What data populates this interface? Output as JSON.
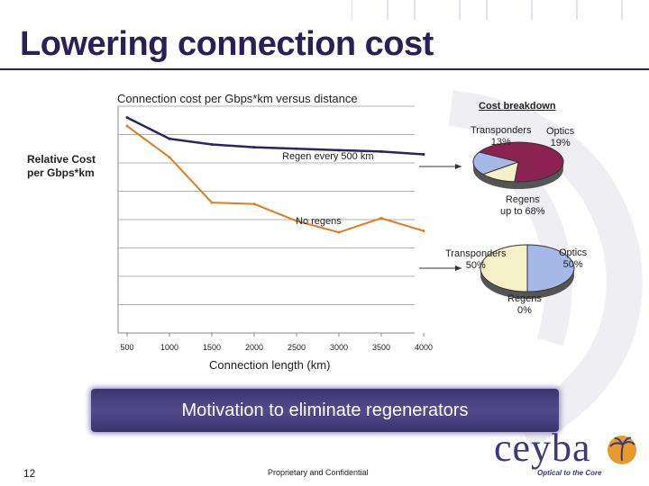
{
  "slide": {
    "title": "Lowering connection cost",
    "page_number": "12",
    "footer": "Proprietary and Confidential",
    "banner": "Motivation to eliminate regenerators",
    "logo_text": "ceyba",
    "logo_tagline": "Optical to the Core",
    "logo_icon": "palm-sun-icon"
  },
  "chart_data": [
    {
      "type": "line",
      "title": "Connection cost per Gbps*km versus distance",
      "xlabel": "Connection length (km)",
      "ylabel": "Relative Cost per Gbps*km",
      "x_ticks": [
        "500",
        "1000",
        "1500",
        "2000",
        "2500",
        "3000",
        "3500",
        "4000"
      ],
      "xlim": [
        500,
        4000
      ],
      "ylim": [
        0,
        8
      ],
      "grid": "horizontal",
      "series": [
        {
          "name": "Regen every 500 km",
          "color": "#2a2466",
          "x": [
            500,
            1000,
            1500,
            2000,
            2500,
            3000,
            3500,
            4000
          ],
          "y": [
            7.6,
            6.85,
            6.65,
            6.55,
            6.5,
            6.45,
            6.4,
            6.3
          ]
        },
        {
          "name": "No regens",
          "color": "#e07b1f",
          "x": [
            500,
            1000,
            1500,
            2000,
            2500,
            3000,
            3500,
            4000
          ],
          "y": [
            7.3,
            6.2,
            4.6,
            4.55,
            3.95,
            3.55,
            4.05,
            3.6
          ]
        }
      ],
      "annotations": [
        "Regen every 500 km",
        "No regens"
      ]
    },
    {
      "type": "pie",
      "title": "Cost breakdown",
      "case": "Regen every 500 km",
      "slices": [
        {
          "label": "Regens",
          "display": "Regens\nup to 68%",
          "value": 68,
          "color": "#8b2252"
        },
        {
          "label": "Transponders",
          "display": "Transponders\n13%",
          "value": 13,
          "color": "#f6f0c8"
        },
        {
          "label": "Optics",
          "display": "Optics\n19%",
          "value": 19,
          "color": "#a6b8e8"
        }
      ]
    },
    {
      "type": "pie",
      "title": "",
      "case": "No regens",
      "slices": [
        {
          "label": "Transponders",
          "display": "Transponders\n50%",
          "value": 50,
          "color": "#f6f0c8"
        },
        {
          "label": "Optics",
          "display": "Optics\n50%",
          "value": 50,
          "color": "#a6b8e8"
        },
        {
          "label": "Regens",
          "display": "Regens\n0%",
          "value": 0,
          "color": "#8b2252"
        }
      ]
    }
  ]
}
